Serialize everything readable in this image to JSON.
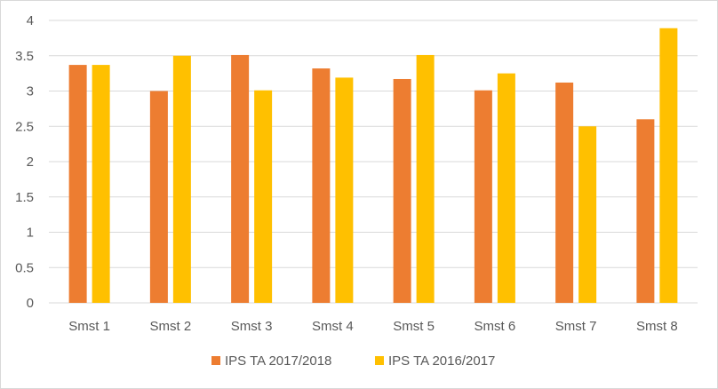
{
  "chart_data": {
    "type": "bar",
    "title": "",
    "xlabel": "",
    "ylabel": "",
    "categories": [
      "Smst 1",
      "Smst 2",
      "Smst 3",
      "Smst 4",
      "Smst 5",
      "Smst 6",
      "Smst 7",
      "Smst 8"
    ],
    "series": [
      {
        "name": "IPS TA 2017/2018",
        "color": "#ed7d31",
        "values": [
          3.37,
          3.0,
          3.51,
          3.32,
          3.17,
          3.01,
          3.12,
          2.6
        ]
      },
      {
        "name": "IPS TA 2016/2017",
        "color": "#ffc000",
        "values": [
          3.37,
          3.5,
          3.01,
          3.19,
          3.51,
          3.25,
          2.5,
          3.89
        ]
      }
    ],
    "ylim": [
      0,
      4
    ],
    "yticks": [
      "0",
      "0.5",
      "1",
      "1.5",
      "2",
      "2.5",
      "3",
      "3.5",
      "4"
    ],
    "grid": true,
    "gridline_color": "#d9d9d9",
    "legend_position": "bottom"
  }
}
